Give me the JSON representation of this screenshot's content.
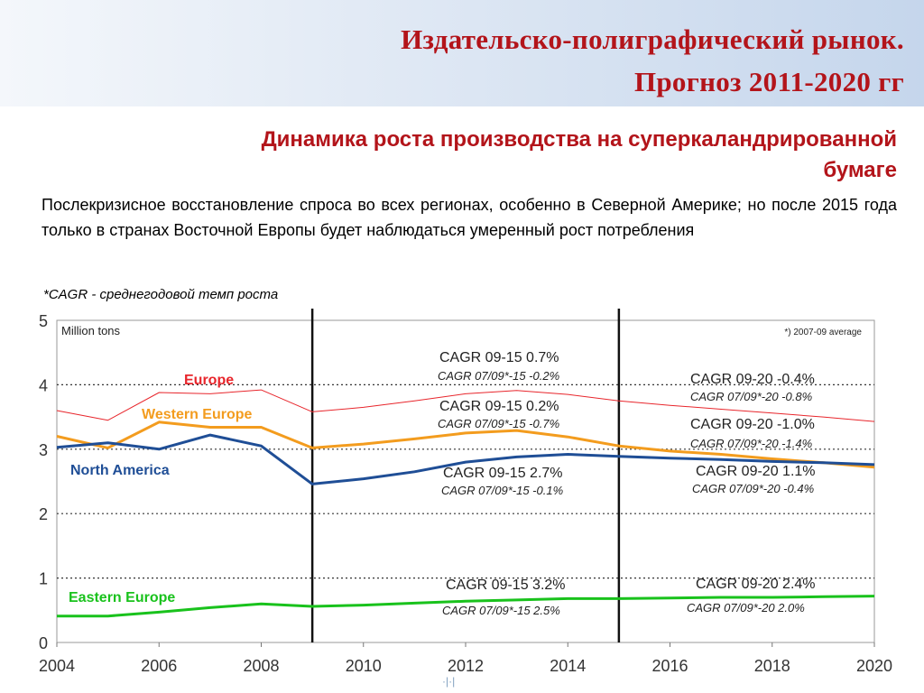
{
  "header": {
    "title_line1": "Издательско-полиграфический рынок.",
    "title_line2": "Прогноз 2011-2020 гг"
  },
  "subtitle_line1": "Динамика роста производства на суперкаландрированной",
  "subtitle_line2": "бумаге",
  "description": "Послекризисное восстановление спроса во всех регионах, особенно в Северной Америке; но после 2015 года только в странах Восточной Европы будет наблюдаться умеренный рост потребления",
  "note": "*CAGR - среднегодовой темп роста",
  "footer_mark": "·|·|",
  "colors": {
    "title": "#b3141a",
    "europe": "#e8262c",
    "western_europe": "#f39c1e",
    "north_america": "#1f4e96",
    "eastern_europe": "#19c21c"
  },
  "chart_data": {
    "type": "line",
    "unit_label": "Million tons",
    "corner_note": "*) 2007-09 average",
    "xlim": [
      2004,
      2020
    ],
    "ylim": [
      0,
      5
    ],
    "x_ticks": [
      "2004",
      "2006",
      "2008",
      "2010",
      "2012",
      "2014",
      "2016",
      "2018",
      "2020"
    ],
    "y_ticks": [
      "0",
      "1",
      "2",
      "3",
      "4",
      "5"
    ],
    "grid": "dotted horizontal",
    "vertical_markers": [
      2009,
      2015
    ],
    "series": [
      {
        "name": "Europe",
        "color": "#e8262c",
        "points": [
          [
            2004,
            3.6
          ],
          [
            2005,
            3.45
          ],
          [
            2006,
            3.88
          ],
          [
            2007,
            3.86
          ],
          [
            2008,
            3.92
          ],
          [
            2009,
            3.58
          ],
          [
            2010,
            3.65
          ],
          [
            2011,
            3.75
          ],
          [
            2012,
            3.86
          ],
          [
            2013,
            3.91
          ],
          [
            2014,
            3.85
          ],
          [
            2015,
            3.75
          ],
          [
            2016,
            3.68
          ],
          [
            2017,
            3.62
          ],
          [
            2018,
            3.56
          ],
          [
            2019,
            3.5
          ],
          [
            2020,
            3.43
          ]
        ]
      },
      {
        "name": "Western Europe",
        "color": "#f39c1e",
        "points": [
          [
            2004,
            3.2
          ],
          [
            2005,
            3.02
          ],
          [
            2006,
            3.42
          ],
          [
            2007,
            3.34
          ],
          [
            2008,
            3.34
          ],
          [
            2009,
            3.02
          ],
          [
            2010,
            3.08
          ],
          [
            2011,
            3.16
          ],
          [
            2012,
            3.25
          ],
          [
            2013,
            3.29
          ],
          [
            2014,
            3.19
          ],
          [
            2015,
            3.05
          ],
          [
            2016,
            2.97
          ],
          [
            2017,
            2.92
          ],
          [
            2018,
            2.85
          ],
          [
            2019,
            2.79
          ],
          [
            2020,
            2.72
          ]
        ]
      },
      {
        "name": "North America",
        "color": "#1f4e96",
        "points": [
          [
            2004,
            3.03
          ],
          [
            2005,
            3.1
          ],
          [
            2006,
            3.0
          ],
          [
            2007,
            3.22
          ],
          [
            2008,
            3.05
          ],
          [
            2009,
            2.46
          ],
          [
            2010,
            2.54
          ],
          [
            2011,
            2.65
          ],
          [
            2012,
            2.8
          ],
          [
            2013,
            2.88
          ],
          [
            2014,
            2.92
          ],
          [
            2015,
            2.89
          ],
          [
            2016,
            2.86
          ],
          [
            2017,
            2.84
          ],
          [
            2018,
            2.81
          ],
          [
            2019,
            2.79
          ],
          [
            2020,
            2.76
          ]
        ]
      },
      {
        "name": "Eastern Europe",
        "color": "#19c21c",
        "points": [
          [
            2004,
            0.41
          ],
          [
            2005,
            0.41
          ],
          [
            2006,
            0.47
          ],
          [
            2007,
            0.54
          ],
          [
            2008,
            0.6
          ],
          [
            2009,
            0.56
          ],
          [
            2010,
            0.58
          ],
          [
            2011,
            0.61
          ],
          [
            2012,
            0.64
          ],
          [
            2013,
            0.66
          ],
          [
            2014,
            0.68
          ],
          [
            2015,
            0.68
          ],
          [
            2016,
            0.69
          ],
          [
            2017,
            0.7
          ],
          [
            2018,
            0.7
          ],
          [
            2019,
            0.71
          ],
          [
            2020,
            0.72
          ]
        ]
      }
    ],
    "annotations": [
      {
        "text": "CAGR 09-15  0.7%",
        "style": "main"
      },
      {
        "text": "CAGR 07/09*-15  -0.2%",
        "style": "italic"
      },
      {
        "text": "CAGR 09-15  0.2%",
        "style": "main"
      },
      {
        "text": "CAGR 07/09*-15  -0.7%",
        "style": "italic"
      },
      {
        "text": "CAGR 09-15  2.7%",
        "style": "main"
      },
      {
        "text": "CAGR 07/09*-15  -0.1%",
        "style": "italic"
      },
      {
        "text": "CAGR 09-15  3.2%",
        "style": "main"
      },
      {
        "text": "CAGR 07/09*-15  2.5%",
        "style": "italic"
      },
      {
        "text": "CAGR 09-20  -0.4%",
        "style": "main"
      },
      {
        "text": "CAGR 07/09*-20  -0.8%",
        "style": "italic"
      },
      {
        "text": "CAGR 09-20  -1.0%",
        "style": "main"
      },
      {
        "text": "CAGR 07/09*-20  -1.4%",
        "style": "italic"
      },
      {
        "text": "CAGR 09-20  1.1%",
        "style": "main"
      },
      {
        "text": "CAGR 07/09*-20  -0.4%",
        "style": "italic"
      },
      {
        "text": "CAGR 09-20  2.4%",
        "style": "main"
      },
      {
        "text": "CAGR 07/09*-20  2.0%",
        "style": "italic"
      }
    ]
  }
}
